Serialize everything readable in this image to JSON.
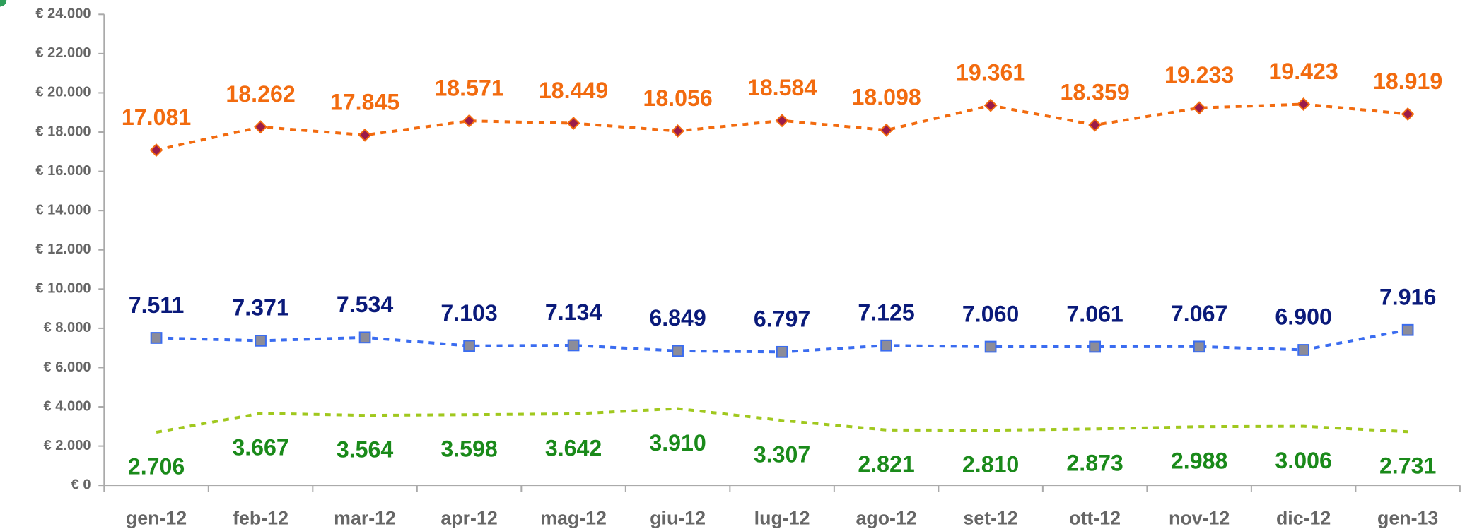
{
  "chart_data": {
    "type": "line",
    "categories": [
      "gen-12",
      "feb-12",
      "mar-12",
      "apr-12",
      "mag-12",
      "giu-12",
      "lug-12",
      "ago-12",
      "set-12",
      "ott-12",
      "nov-12",
      "dic-12",
      "gen-13"
    ],
    "series": [
      {
        "color": "#f26b0f",
        "marker": "diamond",
        "marker_fill": "#9b1b4a",
        "label_color": "#f26b0f",
        "label_position": "above",
        "values": [
          17081,
          18262,
          17845,
          18571,
          18449,
          18056,
          18584,
          18098,
          19361,
          18359,
          19233,
          19423,
          18919
        ],
        "value_labels": [
          "17.081",
          "18.262",
          "17.845",
          "18.571",
          "18.449",
          "18.056",
          "18.584",
          "18.098",
          "19.361",
          "18.359",
          "19.233",
          "19.423",
          "18.919"
        ]
      },
      {
        "color": "#3a6cf0",
        "marker": "square",
        "marker_fill": "#8c8c99",
        "label_color": "#0a1a7a",
        "label_position": "above",
        "values": [
          7511,
          7371,
          7534,
          7103,
          7134,
          6849,
          6797,
          7125,
          7060,
          7061,
          7067,
          6900,
          7916
        ],
        "value_labels": [
          "7.511",
          "7.371",
          "7.534",
          "7.103",
          "7.134",
          "6.849",
          "6.797",
          "7.125",
          "7.060",
          "7.061",
          "7.067",
          "6.900",
          "7.916"
        ]
      },
      {
        "color": "#a0c81e",
        "marker": "circle",
        "marker_fill": "#2e9e5a",
        "label_color": "#1a8a1a",
        "label_position": "below",
        "values": [
          2706,
          3667,
          3564,
          3598,
          3642,
          3910,
          3307,
          2821,
          2810,
          2873,
          2988,
          3006,
          2731
        ],
        "value_labels": [
          "2.706",
          "3.667",
          "3.564",
          "3.598",
          "3.642",
          "3.910",
          "3.307",
          "2.821",
          "2.810",
          "2.873",
          "2.988",
          "3.006",
          "2.731"
        ]
      }
    ],
    "ylim": [
      0,
      24000
    ],
    "yticks": [
      {
        "value": 0,
        "label": "€ 0"
      },
      {
        "value": 2000,
        "label": "€ 2.000"
      },
      {
        "value": 4000,
        "label": "€ 4.000"
      },
      {
        "value": 6000,
        "label": "€ 6.000"
      },
      {
        "value": 8000,
        "label": "€ 8.000"
      },
      {
        "value": 10000,
        "label": "€ 10.000"
      },
      {
        "value": 12000,
        "label": "€ 12.000"
      },
      {
        "value": 14000,
        "label": "€ 14.000"
      },
      {
        "value": 16000,
        "label": "€ 16.000"
      },
      {
        "value": 18000,
        "label": "€ 18.000"
      },
      {
        "value": 20000,
        "label": "€ 20.000"
      },
      {
        "value": 22000,
        "label": "€ 22.000"
      },
      {
        "value": 24000,
        "label": "€ 24.000"
      }
    ],
    "grid": false
  }
}
